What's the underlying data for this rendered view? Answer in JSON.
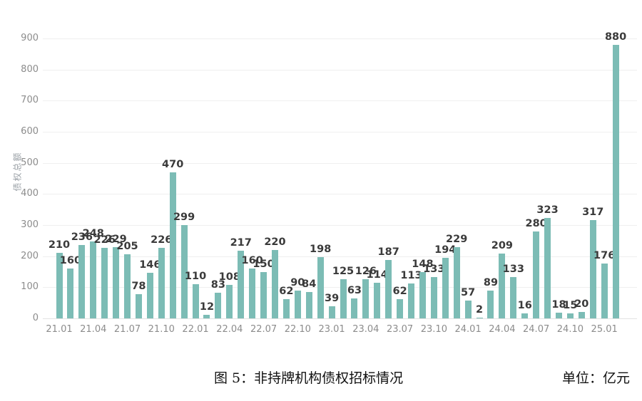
{
  "colors": {
    "bar": "#7cbcb5",
    "grid": "#efefef",
    "zero_line": "#e2e2e2",
    "axis_text": "#8c8c8c",
    "value_text": "#3a3a3a",
    "background": "#ffffff"
  },
  "chart_data": {
    "type": "bar",
    "title": "",
    "xlabel": "",
    "ylabel": "债权总额",
    "ylim": [
      0,
      900
    ],
    "y_ticks": [
      0,
      100,
      200,
      300,
      400,
      500,
      600,
      700,
      800,
      900
    ],
    "grid": true,
    "legend": "none",
    "x_tick_labels_shown": [
      "21.01",
      "21.04",
      "21.07",
      "21.10",
      "22.01",
      "22.04",
      "22.07",
      "22.10",
      "23.01",
      "23.04",
      "23.07",
      "23.10",
      "24.01",
      "24.04",
      "24.07",
      "24.10",
      "25.01"
    ],
    "categories": [
      "21.01",
      "21.02",
      "21.03",
      "21.04",
      "21.05",
      "21.06",
      "21.07",
      "21.08",
      "21.09",
      "21.10",
      "21.11",
      "21.12",
      "22.01",
      "22.02",
      "22.03",
      "22.04",
      "22.05",
      "22.06",
      "22.07",
      "22.08",
      "22.09",
      "22.10",
      "22.11",
      "22.12",
      "23.01",
      "23.02",
      "23.03",
      "23.04",
      "23.05",
      "23.06",
      "23.07",
      "23.08",
      "23.09",
      "23.10",
      "23.11",
      "23.12",
      "24.01",
      "24.02",
      "24.03",
      "24.04",
      "24.05",
      "24.06",
      "24.07",
      "24.08",
      "24.09",
      "24.10",
      "24.11",
      "24.12",
      "25.01",
      "25.02"
    ],
    "values": [
      210,
      160,
      236,
      248,
      226,
      229,
      205,
      78,
      146,
      226,
      470,
      299,
      110,
      12,
      83,
      108,
      217,
      160,
      150,
      220,
      62,
      90,
      84,
      198,
      39,
      125,
      63,
      126,
      114,
      187,
      62,
      113,
      148,
      133,
      194,
      229,
      57,
      2,
      89,
      209,
      133,
      16,
      280,
      323,
      18,
      15,
      20,
      317,
      176,
      880
    ]
  },
  "caption": {
    "title": "图 5：非持牌机构债权招标情况",
    "unit": "单位：亿元"
  }
}
